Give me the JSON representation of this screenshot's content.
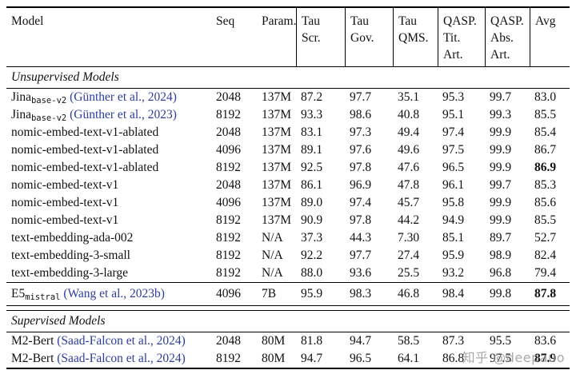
{
  "colors": {
    "citation": "#2d3e9e",
    "watermark": "#9b9b9b"
  },
  "watermark": "知乎 @deepauo",
  "header": {
    "model": "Model",
    "seq": "Seq",
    "param": "Param.",
    "tau_scr": [
      "Tau",
      "Scr."
    ],
    "tau_gov": [
      "Tau",
      "Gov."
    ],
    "tau_qms": [
      "Tau",
      "QMS."
    ],
    "qasp_tit": [
      "QASP.",
      "Tit.",
      "Art."
    ],
    "qasp_abs": [
      "QASP.",
      "Abs.",
      "Art."
    ],
    "avg": "Avg"
  },
  "sections": [
    {
      "title": "Unsupervised Models",
      "blocks": [
        {
          "rows": [
            {
              "name": "Jina",
              "sub": "base-v2",
              "cite": "(Günther et al., 2024)",
              "cells": [
                "2048",
                "137M",
                "87.2",
                "97.7",
                "35.1",
                "95.3",
                "99.7",
                "83.0"
              ],
              "bold": false
            },
            {
              "name": "Jina",
              "sub": "base-v2",
              "cite": "(Günther et al., 2023)",
              "cells": [
                "8192",
                "137M",
                "93.3",
                "98.6",
                "40.8",
                "95.1",
                "99.3",
                "85.5"
              ],
              "bold": false
            },
            {
              "name": "nomic-embed-text-v1-ablated",
              "cells": [
                "2048",
                "137M",
                "83.1",
                "97.3",
                "49.4",
                "97.4",
                "99.9",
                "85.4"
              ],
              "bold": false
            },
            {
              "name": "nomic-embed-text-v1-ablated",
              "cells": [
                "4096",
                "137M",
                "89.1",
                "97.6",
                "49.6",
                "97.5",
                "99.9",
                "86.7"
              ],
              "bold": false
            },
            {
              "name": "nomic-embed-text-v1-ablated",
              "cells": [
                "8192",
                "137M",
                "92.5",
                "97.8",
                "47.6",
                "96.5",
                "99.9",
                "86.9"
              ],
              "bold": true
            },
            {
              "name": "nomic-embed-text-v1",
              "cells": [
                "2048",
                "137M",
                "86.1",
                "96.9",
                "47.8",
                "96.1",
                "99.7",
                "85.3"
              ],
              "bold": false
            },
            {
              "name": "nomic-embed-text-v1",
              "cells": [
                "4096",
                "137M",
                "89.0",
                "97.4",
                "45.7",
                "95.8",
                "99.9",
                "85.6"
              ],
              "bold": false
            },
            {
              "name": "nomic-embed-text-v1",
              "cells": [
                "8192",
                "137M",
                "90.9",
                "97.8",
                "44.2",
                "94.9",
                "99.9",
                "85.5"
              ],
              "bold": false
            },
            {
              "name": "text-embedding-ada-002",
              "cells": [
                "8192",
                "N/A",
                "37.3",
                "44.3",
                "7.30",
                "85.1",
                "89.7",
                "52.7"
              ],
              "bold": false
            },
            {
              "name": "text-embedding-3-small",
              "cells": [
                "8192",
                "N/A",
                "92.2",
                "97.7",
                "27.4",
                "95.9",
                "98.9",
                "82.4"
              ],
              "bold": false
            },
            {
              "name": "text-embedding-3-large",
              "cells": [
                "8192",
                "N/A",
                "88.0",
                "93.6",
                "25.5",
                "93.2",
                "96.8",
                "79.4"
              ],
              "bold": false
            }
          ]
        },
        {
          "rows": [
            {
              "name": "E5",
              "sub": "mistral",
              "cite": "(Wang et al., 2023b)",
              "cells": [
                "4096",
                "7B",
                "95.9",
                "98.3",
                "46.8",
                "98.4",
                "99.8",
                "87.8"
              ],
              "bold": true
            }
          ]
        }
      ]
    },
    {
      "title": "Supervised Models",
      "blocks": [
        {
          "rows": [
            {
              "name": "M2-Bert",
              "cite": "(Saad-Falcon et al., 2024)",
              "cells": [
                "2048",
                "80M",
                "81.8",
                "94.7",
                "58.5",
                "87.3",
                "95.5",
                "83.6"
              ],
              "bold": false
            },
            {
              "name": "M2-Bert",
              "cite": "(Saad-Falcon et al., 2024)",
              "cells": [
                "8192",
                "80M",
                "94.7",
                "96.5",
                "64.1",
                "86.8",
                "97.5",
                "87.9"
              ],
              "bold": true
            }
          ]
        }
      ]
    }
  ]
}
